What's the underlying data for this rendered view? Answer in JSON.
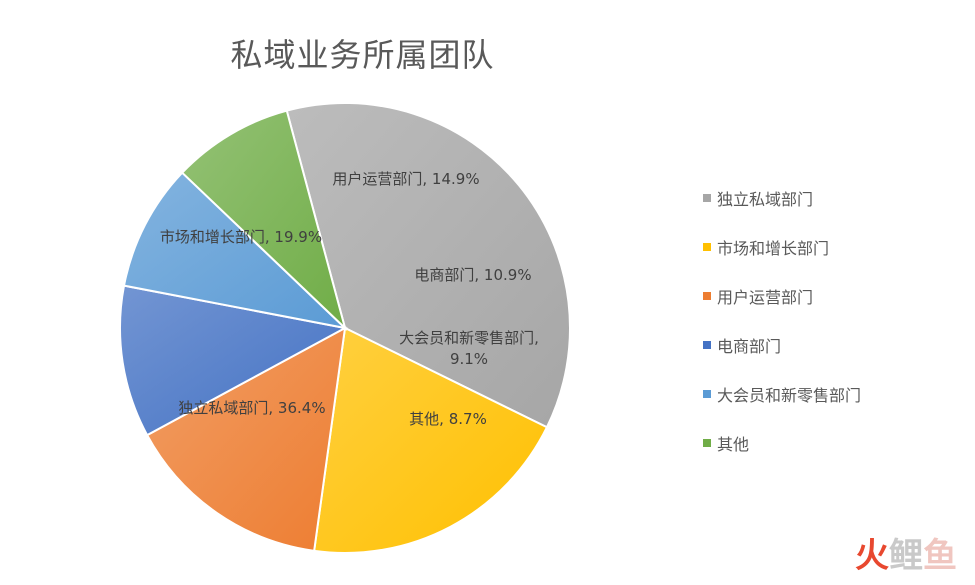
{
  "chart_data": {
    "type": "pie",
    "title": "私域业务所属团队",
    "slices": [
      {
        "name": "独立私域部门",
        "value": 36.4,
        "label": "独立私域部门, 36.4%",
        "color": "#a6a6a6"
      },
      {
        "name": "市场和增长部门",
        "value": 19.9,
        "label": "市场和增长部门, 19.9%",
        "color": "#ffc000"
      },
      {
        "name": "用户运营部门",
        "value": 14.9,
        "label": "用户运营部门, 14.9%",
        "color": "#ed7d31"
      },
      {
        "name": "电商部门",
        "value": 10.9,
        "label": "电商部门, 10.9%",
        "color": "#4472c4"
      },
      {
        "name": "大会员和新零售部门",
        "value": 9.1,
        "label": "大会员和新零售部门,\n9.1%",
        "color": "#5b9bd5"
      },
      {
        "name": "其他",
        "value": 8.7,
        "label": "其他, 8.7%",
        "color": "#70ad47"
      }
    ],
    "legend_position": "right"
  },
  "watermark": {
    "part1": "火",
    "part2": "鲤",
    "part3": "鱼"
  }
}
